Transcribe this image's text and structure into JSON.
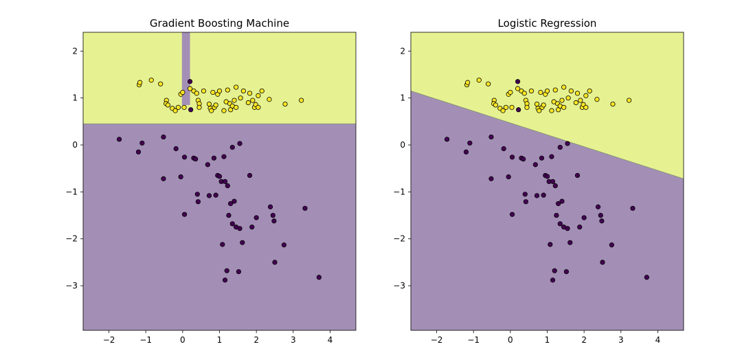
{
  "chart_data": [
    {
      "type": "scatter",
      "title": "Gradient Boosting Machine",
      "xlabel": "",
      "ylabel": "",
      "xlim": [
        -2.7,
        4.7
      ],
      "ylim": [
        -3.95,
        2.4
      ],
      "xticks": [
        -2,
        -1,
        0,
        1,
        2,
        3,
        4
      ],
      "yticks": [
        -3,
        -2,
        -1,
        0,
        1,
        2
      ],
      "grid": false,
      "legend": "none",
      "decision_regions": {
        "class_1_color": "#e6f291",
        "class_0_color": "#a38fb5",
        "threshold_y": 0.45,
        "vertical_strip_x": [
          -0.02,
          0.2
        ],
        "vertical_strip_y_min": 0.85
      }
    },
    {
      "type": "scatter",
      "title": "Logistic Regression",
      "xlabel": "",
      "ylabel": "",
      "xlim": [
        -2.7,
        4.7
      ],
      "ylim": [
        -3.95,
        2.4
      ],
      "xticks": [
        -2,
        -1,
        0,
        1,
        2,
        3,
        4
      ],
      "yticks": [
        -3,
        -2,
        -1,
        0,
        1,
        2
      ],
      "grid": false,
      "legend": "none",
      "decision_regions": {
        "class_1_color": "#e6f291",
        "class_0_color": "#a38fb5",
        "boundary": [
          [
            -2.7,
            1.15
          ],
          [
            4.7,
            -0.72
          ]
        ]
      }
    }
  ],
  "points": {
    "class_1_color": "#fde725",
    "class_0_color": "#440154",
    "class_1": [
      [
        -1.18,
        1.28
      ],
      [
        -1.16,
        1.33
      ],
      [
        -0.85,
        1.38
      ],
      [
        -0.6,
        1.3
      ],
      [
        -0.44,
        0.95
      ],
      [
        -0.45,
        0.88
      ],
      [
        -0.4,
        0.85
      ],
      [
        -0.28,
        0.78
      ],
      [
        -0.2,
        0.73
      ],
      [
        -0.12,
        0.8
      ],
      [
        -0.05,
        1.08
      ],
      [
        0.0,
        1.12
      ],
      [
        0.04,
        0.8
      ],
      [
        0.2,
        1.2
      ],
      [
        0.3,
        1.15
      ],
      [
        0.38,
        1.1
      ],
      [
        0.42,
        0.95
      ],
      [
        0.45,
        0.88
      ],
      [
        0.45,
        0.8
      ],
      [
        0.57,
        1.15
      ],
      [
        0.72,
        0.87
      ],
      [
        0.75,
        0.78
      ],
      [
        0.78,
        0.73
      ],
      [
        0.82,
        1.12
      ],
      [
        0.86,
        0.8
      ],
      [
        0.9,
        0.85
      ],
      [
        0.95,
        1.08
      ],
      [
        1.0,
        1.15
      ],
      [
        1.12,
        0.73
      ],
      [
        1.18,
        0.92
      ],
      [
        1.22,
        1.17
      ],
      [
        1.28,
        0.88
      ],
      [
        1.3,
        0.75
      ],
      [
        1.35,
        0.83
      ],
      [
        1.4,
        0.95
      ],
      [
        1.45,
        0.8
      ],
      [
        1.45,
        1.23
      ],
      [
        1.57,
        1.0
      ],
      [
        1.65,
        1.15
      ],
      [
        1.78,
        0.9
      ],
      [
        1.82,
        1.1
      ],
      [
        1.9,
        0.95
      ],
      [
        1.95,
        0.8
      ],
      [
        1.98,
        0.86
      ],
      [
        2.05,
        0.8
      ],
      [
        2.05,
        1.05
      ],
      [
        2.15,
        1.15
      ],
      [
        2.35,
        0.97
      ],
      [
        2.78,
        0.87
      ],
      [
        3.22,
        0.95
      ]
    ],
    "class_0": [
      [
        -1.72,
        0.12
      ],
      [
        -1.2,
        -0.15
      ],
      [
        -1.1,
        0.04
      ],
      [
        -0.52,
        0.17
      ],
      [
        -0.52,
        -0.72
      ],
      [
        -0.18,
        -0.08
      ],
      [
        -0.05,
        -0.68
      ],
      [
        0.05,
        -0.26
      ],
      [
        0.05,
        -1.48
      ],
      [
        0.2,
        1.35
      ],
      [
        0.22,
        0.75
      ],
      [
        0.3,
        -0.28
      ],
      [
        0.35,
        -0.3
      ],
      [
        0.4,
        -1.05
      ],
      [
        0.42,
        -1.21
      ],
      [
        0.68,
        -0.42
      ],
      [
        0.72,
        -1.08
      ],
      [
        0.85,
        -0.28
      ],
      [
        0.9,
        -1.07
      ],
      [
        0.95,
        -0.65
      ],
      [
        1.0,
        -0.67
      ],
      [
        1.05,
        -0.78
      ],
      [
        1.08,
        -2.12
      ],
      [
        1.12,
        -0.25
      ],
      [
        1.15,
        -0.78
      ],
      [
        1.15,
        -2.88
      ],
      [
        1.2,
        -2.68
      ],
      [
        1.22,
        -0.87
      ],
      [
        1.25,
        -1.5
      ],
      [
        1.3,
        -1.25
      ],
      [
        1.35,
        -0.05
      ],
      [
        1.35,
        -1.68
      ],
      [
        1.4,
        -1.2
      ],
      [
        1.45,
        -1.75
      ],
      [
        1.52,
        -2.7
      ],
      [
        1.55,
        0.03
      ],
      [
        1.55,
        -1.78
      ],
      [
        1.62,
        -2.08
      ],
      [
        1.82,
        -0.65
      ],
      [
        1.88,
        -1.75
      ],
      [
        2.0,
        -1.55
      ],
      [
        2.38,
        -1.32
      ],
      [
        2.45,
        -1.5
      ],
      [
        2.48,
        -1.62
      ],
      [
        2.5,
        -2.5
      ],
      [
        2.75,
        -2.13
      ],
      [
        3.32,
        -1.35
      ],
      [
        3.7,
        -2.82
      ]
    ]
  }
}
